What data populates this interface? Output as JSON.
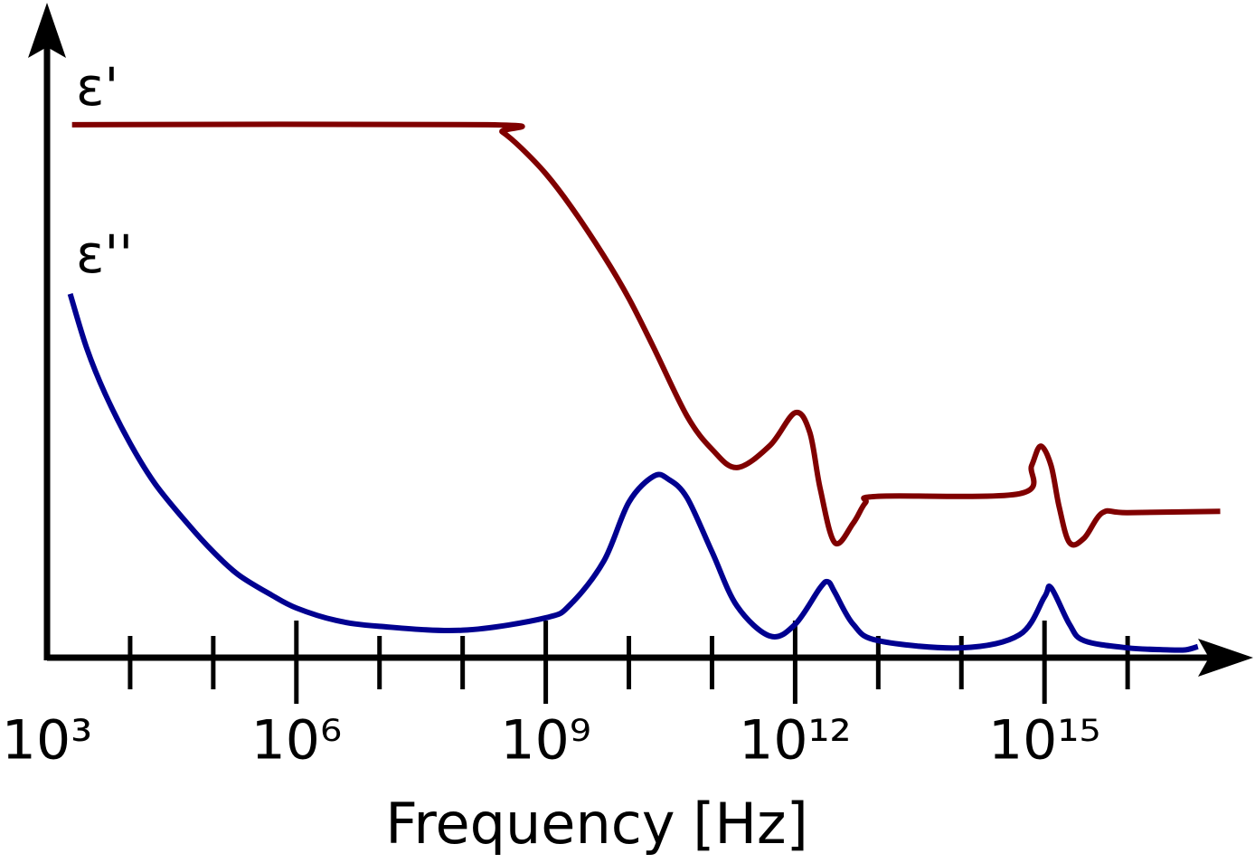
{
  "chart_data": {
    "type": "line",
    "x_label": "Frequency [Hz]",
    "x_log_scale": true,
    "xlim": [
      1000,
      3.16e+17
    ],
    "ylim": [
      0,
      100
    ],
    "xticks": [
      {
        "value": 1000,
        "label": "10³"
      },
      {
        "value": 1000000,
        "label": "10⁶"
      },
      {
        "value": 1000000000,
        "label": "10⁹"
      },
      {
        "value": 1000000000000,
        "label": "10¹²"
      },
      {
        "value": 1000000000000000,
        "label": "10¹⁵"
      }
    ],
    "xminorticks": [
      10000,
      100000,
      10000000,
      100000000,
      10000000000,
      100000000000,
      10000000000000,
      100000000000000,
      10000000000000000
    ],
    "series": [
      {
        "name": "ε'",
        "color": "#800000",
        "x": [
          2000,
          200000000,
          300000000,
          500000000,
          1000000000,
          2000000000,
          5000000000,
          10000000000,
          20000000000,
          50000000000,
          100000000000,
          200000000000,
          500000000000,
          1000000000000,
          1500000000000,
          2000000000000,
          3000000000000,
          5000000000000,
          7000000000000,
          10000000000000,
          500000000000000,
          700000000000000,
          900000000000000,
          1200000000000000,
          1500000000000000,
          2000000000000000,
          3000000000000000,
          5000000000000000,
          10000000000000000,
          130000000000000000
        ],
        "values": [
          81.6,
          81.6,
          80.5,
          78.1,
          74.1,
          69.1,
          61.5,
          55.0,
          47.4,
          37.0,
          31.9,
          29.1,
          32.5,
          37.5,
          34.5,
          25.9,
          17.6,
          20.6,
          23.7,
          24.7,
          25.1,
          29.4,
          32.4,
          29.4,
          23.1,
          17.6,
          18.3,
          22.2,
          22.2,
          22.4
        ]
      },
      {
        "name": "ε''",
        "color": "#000090",
        "x": [
          1900,
          3000,
          5000,
          10000,
          20000,
          50000,
          100000,
          200000,
          500000,
          1000000,
          3000000,
          10000000,
          100000000,
          1000000000,
          2000000000,
          5000000000,
          10000000000,
          20000000000,
          30000000000,
          50000000000,
          100000000000,
          200000000000,
          500000000000,
          1000000000000,
          2000000000000,
          2500000000000,
          3000000000000,
          5000000000000,
          10000000000000,
          100000000000000,
          500000000000000,
          1000000000000000,
          1200000000000000,
          2000000000000000,
          3000000000000000,
          10000000000000000,
          30000000000000000,
          50000000000000000,
          70000000000000000
        ],
        "values": [
          55.7,
          47.4,
          40.4,
          32.8,
          26.6,
          20.4,
          16.2,
          12.7,
          9.6,
          7.6,
          5.7,
          4.8,
          4.2,
          6.1,
          8.2,
          14.8,
          23.8,
          27.8,
          27.3,
          24.5,
          16.2,
          7.9,
          3.3,
          5.1,
          10.7,
          11.6,
          10.0,
          5.1,
          2.6,
          1.5,
          3.5,
          9.3,
          10.7,
          5.1,
          2.6,
          1.5,
          1.2,
          1.2,
          1.7
        ]
      }
    ]
  }
}
